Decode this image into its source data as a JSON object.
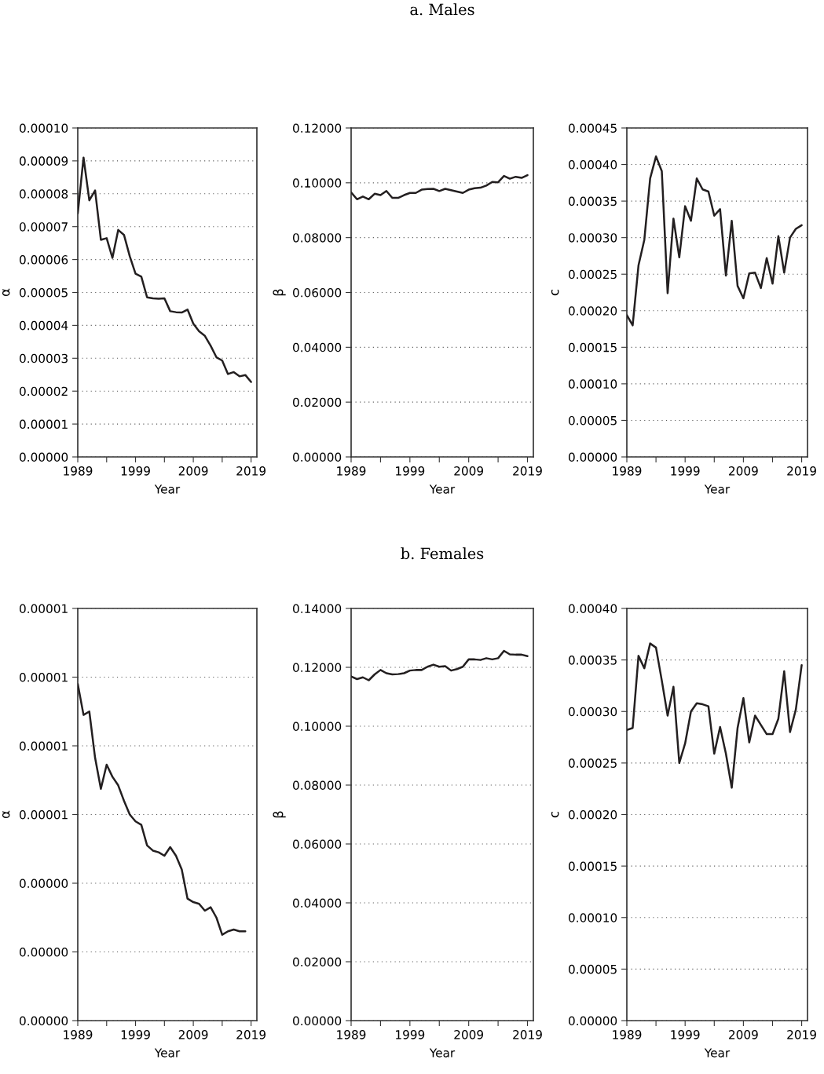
{
  "chart_data": [
    {
      "type": "line",
      "ylabel": "α",
      "xlabel": "Year",
      "xlim": [
        1989,
        2020
      ],
      "xticks": [
        1989,
        {
          "value": 1994,
          "label": null
        },
        1999,
        {
          "value": 2004,
          "label": null
        },
        2009,
        {
          "value": 2014,
          "label": null
        },
        2019
      ],
      "ylim": [
        0,
        0.0001
      ],
      "yticks": [
        {
          "value": 0,
          "label": "0.00000"
        },
        {
          "value": 1e-05,
          "label": "0.00001"
        },
        {
          "value": 2e-05,
          "label": "0.00002"
        },
        {
          "value": 3e-05,
          "label": "0.00003"
        },
        {
          "value": 4e-05,
          "label": "0.00004"
        },
        {
          "value": 5e-05,
          "label": "0.00005"
        },
        {
          "value": 6e-05,
          "label": "0.00006"
        },
        {
          "value": 7e-05,
          "label": "0.00007"
        },
        {
          "value": 8e-05,
          "label": "0.00008"
        },
        {
          "value": 9e-05,
          "label": "0.00009"
        },
        {
          "value": 0.0001,
          "label": "0.00010"
        }
      ],
      "grid": "y",
      "line_style": "solid",
      "marker": "none",
      "x": [
        1989,
        1990,
        1991,
        1992,
        1993,
        1994,
        1995,
        1996,
        1997,
        1998,
        1999,
        2000,
        2001,
        2002,
        2003,
        2004,
        2005,
        2006,
        2007,
        2008,
        2009,
        2010,
        2011,
        2012,
        2013,
        2014,
        2015,
        2016,
        2017,
        2018,
        2019
      ],
      "series": [
        {
          "color": "#231f20",
          "values": [
            7.4e-05,
            9.1e-05,
            7.8e-05,
            8.1e-05,
            6.6e-05,
            6.65e-05,
            6.05e-05,
            6.9e-05,
            6.75e-05,
            6.1e-05,
            5.57e-05,
            5.48e-05,
            4.85e-05,
            4.82e-05,
            4.81e-05,
            4.82e-05,
            4.43e-05,
            4.4e-05,
            4.39e-05,
            4.48e-05,
            4.05e-05,
            3.82e-05,
            3.68e-05,
            3.38e-05,
            3.03e-05,
            2.93e-05,
            2.52e-05,
            2.58e-05,
            2.45e-05,
            2.49e-05,
            2.28e-05
          ]
        }
      ]
    },
    {
      "type": "line",
      "title": "a. Males",
      "ylabel": "β",
      "xlabel": "Year",
      "xlim": [
        1989,
        2020
      ],
      "xticks": [
        1989,
        {
          "value": 1994,
          "label": null
        },
        1999,
        {
          "value": 2004,
          "label": null
        },
        2009,
        {
          "value": 2014,
          "label": null
        },
        2019
      ],
      "ylim": [
        0,
        0.12
      ],
      "yticks": [
        {
          "value": 0,
          "label": "0.00000"
        },
        {
          "value": 0.02,
          "label": "0.02000"
        },
        {
          "value": 0.04,
          "label": "0.04000"
        },
        {
          "value": 0.06,
          "label": "0.06000"
        },
        {
          "value": 0.08,
          "label": "0.08000"
        },
        {
          "value": 0.1,
          "label": "0.10000"
        },
        {
          "value": 0.12,
          "label": "0.12000"
        }
      ],
      "grid": "y",
      "line_style": "solid",
      "marker": "none",
      "x": [
        1989,
        1990,
        1991,
        1992,
        1993,
        1994,
        1995,
        1996,
        1997,
        1998,
        1999,
        2000,
        2001,
        2002,
        2003,
        2004,
        2005,
        2006,
        2007,
        2008,
        2009,
        2010,
        2011,
        2012,
        2013,
        2014,
        2015,
        2016,
        2017,
        2018,
        2019
      ],
      "series": [
        {
          "color": "#231f20",
          "values": [
            0.0965,
            0.094,
            0.095,
            0.094,
            0.096,
            0.0955,
            0.097,
            0.0945,
            0.0945,
            0.0955,
            0.0963,
            0.0963,
            0.0975,
            0.0977,
            0.0978,
            0.097,
            0.0978,
            0.0973,
            0.0968,
            0.0963,
            0.0975,
            0.098,
            0.0982,
            0.099,
            0.1003,
            0.1002,
            0.1025,
            0.1015,
            0.1022,
            0.1018,
            0.1028
          ]
        }
      ]
    },
    {
      "type": "line",
      "ylabel": "c",
      "xlabel": "Year",
      "xlim": [
        1989,
        2020
      ],
      "xticks": [
        1989,
        {
          "value": 1994,
          "label": null
        },
        1999,
        {
          "value": 2004,
          "label": null
        },
        2009,
        {
          "value": 2014,
          "label": null
        },
        2019
      ],
      "ylim": [
        0,
        0.00045
      ],
      "yticks": [
        {
          "value": 0,
          "label": "0.00000"
        },
        {
          "value": 5e-05,
          "label": "0.00005"
        },
        {
          "value": 0.0001,
          "label": "0.00010"
        },
        {
          "value": 0.00015,
          "label": "0.00015"
        },
        {
          "value": 0.0002,
          "label": "0.00020"
        },
        {
          "value": 0.00025,
          "label": "0.00025"
        },
        {
          "value": 0.0003,
          "label": "0.00030"
        },
        {
          "value": 0.00035,
          "label": "0.00035"
        },
        {
          "value": 0.0004,
          "label": "0.00040"
        },
        {
          "value": 0.00045,
          "label": "0.00045"
        }
      ],
      "grid": "y",
      "line_style": "solid",
      "marker": "none",
      "x": [
        1989,
        1990,
        1991,
        1992,
        1993,
        1994,
        1995,
        1996,
        1997,
        1998,
        1999,
        2000,
        2001,
        2002,
        2003,
        2004,
        2005,
        2006,
        2007,
        2008,
        2009,
        2010,
        2011,
        2012,
        2013,
        2014,
        2015,
        2016,
        2017,
        2018,
        2019
      ],
      "series": [
        {
          "color": "#231f20",
          "values": [
            0.000194,
            0.00018,
            0.000262,
            0.000297,
            0.000381,
            0.000411,
            0.000391,
            0.000224,
            0.000326,
            0.000273,
            0.000343,
            0.000323,
            0.000381,
            0.000366,
            0.000363,
            0.00033,
            0.000339,
            0.000248,
            0.000323,
            0.000234,
            0.000217,
            0.000251,
            0.000252,
            0.000231,
            0.000272,
            0.000237,
            0.000302,
            0.000252,
            0.0003,
            0.000312,
            0.000317
          ]
        }
      ]
    },
    {
      "type": "line",
      "ylabel": "α",
      "xlabel": "Year",
      "xlim": [
        1989,
        2020
      ],
      "xticks": [
        1989,
        {
          "value": 1994,
          "label": null
        },
        1999,
        {
          "value": 2004,
          "label": null
        },
        2009,
        {
          "value": 2014,
          "label": null
        },
        2019
      ],
      "ylim": [
        0,
        1.2e-05
      ],
      "yticks": [
        {
          "value": 0,
          "label": "0.00000"
        },
        {
          "value": 2e-06,
          "label": "0.00000"
        },
        {
          "value": 4e-06,
          "label": "0.00000"
        },
        {
          "value": 6e-06,
          "label": "0.00001"
        },
        {
          "value": 8e-06,
          "label": "0.00001"
        },
        {
          "value": 1e-05,
          "label": "0.00001"
        },
        {
          "value": 1.2e-05,
          "label": "0.00001"
        }
      ],
      "grid": "y",
      "line_style": "solid",
      "marker": "none",
      "x": [
        1989,
        1990,
        1991,
        1992,
        1993,
        1994,
        1995,
        1996,
        1997,
        1998,
        1999,
        2000,
        2001,
        2002,
        2003,
        2004,
        2005,
        2006,
        2007,
        2008,
        2009,
        2010,
        2011,
        2012,
        2013,
        2014,
        2015,
        2016,
        2017,
        2018
      ],
      "series": [
        {
          "color": "#231f20",
          "values": [
            9.8e-06,
            8.9e-06,
            9e-06,
            7.65e-06,
            6.75e-06,
            7.45e-06,
            7.1e-06,
            6.85e-06,
            6.4e-06,
            6e-06,
            5.8e-06,
            5.7e-06,
            5.1e-06,
            4.95e-06,
            4.9e-06,
            4.8e-06,
            5.05e-06,
            4.8e-06,
            4.4e-06,
            3.55e-06,
            3.45e-06,
            3.4e-06,
            3.2e-06,
            3.3e-06,
            3e-06,
            2.5e-06,
            2.6e-06,
            2.65e-06,
            2.6e-06,
            2.6e-06
          ]
        }
      ]
    },
    {
      "type": "line",
      "title": "b. Females",
      "ylabel": "β",
      "xlabel": "Year",
      "xlim": [
        1989,
        2020
      ],
      "xticks": [
        1989,
        {
          "value": 1994,
          "label": null
        },
        1999,
        {
          "value": 2004,
          "label": null
        },
        2009,
        {
          "value": 2014,
          "label": null
        },
        2019
      ],
      "ylim": [
        0,
        0.14
      ],
      "yticks": [
        {
          "value": 0,
          "label": "0.00000"
        },
        {
          "value": 0.02,
          "label": "0.02000"
        },
        {
          "value": 0.04,
          "label": "0.04000"
        },
        {
          "value": 0.06,
          "label": "0.06000"
        },
        {
          "value": 0.08,
          "label": "0.08000"
        },
        {
          "value": 0.1,
          "label": "0.10000"
        },
        {
          "value": 0.12,
          "label": "0.12000"
        },
        {
          "value": 0.14,
          "label": "0.14000"
        }
      ],
      "grid": "y",
      "line_style": "solid",
      "marker": "none",
      "x": [
        1989,
        1990,
        1991,
        1992,
        1993,
        1994,
        1995,
        1996,
        1997,
        1998,
        1999,
        2000,
        2001,
        2002,
        2003,
        2004,
        2005,
        2006,
        2007,
        2008,
        2009,
        2010,
        2011,
        2012,
        2013,
        2014,
        2015,
        2016,
        2017,
        2018,
        2019
      ],
      "series": [
        {
          "color": "#231f20",
          "values": [
            0.1169,
            0.116,
            0.1166,
            0.1156,
            0.1176,
            0.1191,
            0.118,
            0.1176,
            0.1177,
            0.118,
            0.1189,
            0.1191,
            0.1191,
            0.1202,
            0.1209,
            0.1202,
            0.1204,
            0.1189,
            0.1194,
            0.1202,
            0.1227,
            0.1227,
            0.1225,
            0.1231,
            0.1227,
            0.1231,
            0.1256,
            0.1244,
            0.1243,
            0.1243,
            0.1238
          ]
        }
      ]
    },
    {
      "type": "line",
      "ylabel": "c",
      "xlabel": "Year",
      "xlim": [
        1989,
        2020
      ],
      "xticks": [
        1989,
        {
          "value": 1994,
          "label": null
        },
        1999,
        {
          "value": 2004,
          "label": null
        },
        2009,
        {
          "value": 2014,
          "label": null
        },
        2019
      ],
      "ylim": [
        0,
        0.0004
      ],
      "yticks": [
        {
          "value": 0,
          "label": "0.00000"
        },
        {
          "value": 5e-05,
          "label": "0.00005"
        },
        {
          "value": 0.0001,
          "label": "0.00010"
        },
        {
          "value": 0.00015,
          "label": "0.00015"
        },
        {
          "value": 0.0002,
          "label": "0.00020"
        },
        {
          "value": 0.00025,
          "label": "0.00025"
        },
        {
          "value": 0.0003,
          "label": "0.00030"
        },
        {
          "value": 0.00035,
          "label": "0.00035"
        },
        {
          "value": 0.0004,
          "label": "0.00040"
        }
      ],
      "grid": "y",
      "line_style": "solid",
      "marker": "none",
      "x": [
        1989,
        1990,
        1991,
        1992,
        1993,
        1994,
        1995,
        1996,
        1997,
        1998,
        1999,
        2000,
        2001,
        2002,
        2003,
        2004,
        2005,
        2006,
        2007,
        2008,
        2009,
        2010,
        2011,
        2012,
        2013,
        2014,
        2015,
        2016,
        2017,
        2018,
        2019
      ],
      "series": [
        {
          "color": "#231f20",
          "values": [
            0.000282,
            0.000284,
            0.000354,
            0.000342,
            0.000366,
            0.000362,
            0.00033,
            0.000296,
            0.000324,
            0.00025,
            0.000269,
            0.0003,
            0.000308,
            0.000307,
            0.000305,
            0.000259,
            0.000285,
            0.000259,
            0.000226,
            0.000284,
            0.000313,
            0.00027,
            0.000296,
            0.000287,
            0.000278,
            0.000278,
            0.000293,
            0.000339,
            0.00028,
            0.000302,
            0.000345
          ]
        }
      ]
    }
  ]
}
